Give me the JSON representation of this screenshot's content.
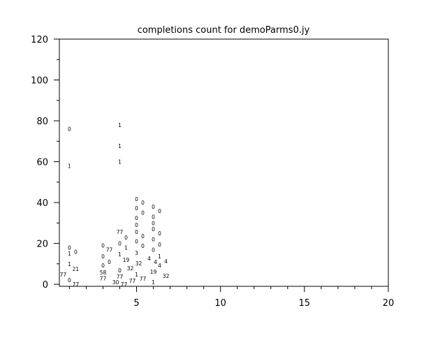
{
  "chart_data": {
    "type": "scatter",
    "title": "completions count for demoParms0.jy",
    "xlabel": "",
    "ylabel": "",
    "xlim": [
      0.4,
      20
    ],
    "ylim": [
      -1,
      120
    ],
    "xticks": [
      5,
      10,
      15,
      20
    ],
    "yticks": [
      0,
      20,
      40,
      60,
      80,
      100,
      120
    ],
    "grid": false,
    "points": [
      {
        "x": 1,
        "y": 76,
        "label": "0"
      },
      {
        "x": 1,
        "y": 58,
        "label": "1"
      },
      {
        "x": 1,
        "y": 18,
        "label": "0"
      },
      {
        "x": 1,
        "y": 16,
        "label": "0"
      },
      {
        "x": 1,
        "y": 15,
        "label": "1"
      },
      {
        "x": 1,
        "y": 10,
        "label": "1"
      },
      {
        "x": 1,
        "y": 7.5,
        "label": "21"
      },
      {
        "x": 1,
        "y": 4.8,
        "label": "77"
      },
      {
        "x": 1,
        "y": 2,
        "label": "0"
      },
      {
        "x": 1,
        "y": 0,
        "label": "77"
      },
      {
        "x": 3,
        "y": 19,
        "label": "0"
      },
      {
        "x": 3,
        "y": 17,
        "label": "77"
      },
      {
        "x": 3,
        "y": 13.7,
        "label": "0"
      },
      {
        "x": 3,
        "y": 11,
        "label": "0"
      },
      {
        "x": 3,
        "y": 9.2,
        "label": "0"
      },
      {
        "x": 3,
        "y": 5.8,
        "label": "58"
      },
      {
        "x": 3,
        "y": 3,
        "label": "77"
      },
      {
        "x": 3,
        "y": 1,
        "label": "30"
      },
      {
        "x": 4,
        "y": 78,
        "label": "1"
      },
      {
        "x": 4,
        "y": 67.7,
        "label": "1"
      },
      {
        "x": 4,
        "y": 60,
        "label": "1"
      },
      {
        "x": 4,
        "y": 25.6,
        "label": "77"
      },
      {
        "x": 4,
        "y": 23,
        "label": "0"
      },
      {
        "x": 4,
        "y": 20,
        "label": "0"
      },
      {
        "x": 4,
        "y": 18,
        "label": "1"
      },
      {
        "x": 4,
        "y": 14.7,
        "label": "1"
      },
      {
        "x": 4,
        "y": 12,
        "label": "19"
      },
      {
        "x": 4,
        "y": 10.3,
        "label": "32"
      },
      {
        "x": 4,
        "y": 6.8,
        "label": "0"
      },
      {
        "x": 4,
        "y": 3.8,
        "label": "77"
      },
      {
        "x": 4,
        "y": 1.7,
        "label": "77"
      },
      {
        "x": 5,
        "y": 41.7,
        "label": "0"
      },
      {
        "x": 5,
        "y": 40,
        "label": "0"
      },
      {
        "x": 5,
        "y": 37.3,
        "label": "0"
      },
      {
        "x": 5,
        "y": 35,
        "label": "0"
      },
      {
        "x": 5,
        "y": 32.5,
        "label": "0"
      },
      {
        "x": 5,
        "y": 29,
        "label": "0"
      },
      {
        "x": 5,
        "y": 25.6,
        "label": "0"
      },
      {
        "x": 5,
        "y": 23.6,
        "label": "0"
      },
      {
        "x": 5,
        "y": 21,
        "label": "0"
      },
      {
        "x": 5,
        "y": 18.8,
        "label": "0"
      },
      {
        "x": 5,
        "y": 15.4,
        "label": "3"
      },
      {
        "x": 5,
        "y": 12.6,
        "label": "4"
      },
      {
        "x": 5,
        "y": 11,
        "label": "4"
      },
      {
        "x": 5,
        "y": 7.9,
        "label": "32"
      },
      {
        "x": 5,
        "y": 4.8,
        "label": "1"
      },
      {
        "x": 5,
        "y": 2.7,
        "label": "77"
      },
      {
        "x": 5,
        "y": 0,
        "label": "77"
      },
      {
        "x": 6,
        "y": 38,
        "label": "0"
      },
      {
        "x": 6,
        "y": 36,
        "label": "0"
      },
      {
        "x": 6,
        "y": 33,
        "label": "0"
      },
      {
        "x": 6,
        "y": 30,
        "label": "0"
      },
      {
        "x": 6,
        "y": 27,
        "label": "0"
      },
      {
        "x": 6,
        "y": 25,
        "label": "0"
      },
      {
        "x": 6,
        "y": 22,
        "label": "0"
      },
      {
        "x": 6,
        "y": 19.5,
        "label": "0"
      },
      {
        "x": 6,
        "y": 17,
        "label": "0"
      },
      {
        "x": 6,
        "y": 13.7,
        "label": "1"
      },
      {
        "x": 6,
        "y": 11.3,
        "label": "4"
      },
      {
        "x": 6,
        "y": 9.2,
        "label": "4"
      },
      {
        "x": 6,
        "y": 6.2,
        "label": "19"
      },
      {
        "x": 6,
        "y": 4.1,
        "label": "32"
      },
      {
        "x": 6,
        "y": 1,
        "label": "1"
      }
    ]
  }
}
